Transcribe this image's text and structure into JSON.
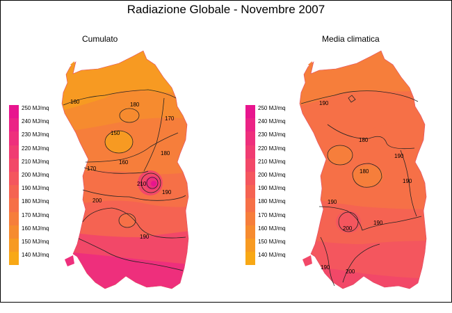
{
  "title": "Radiazione Globale - Novembre 2007",
  "panels": [
    {
      "title": "Cumulato"
    },
    {
      "title": "Media climatica"
    }
  ],
  "legend": {
    "unit": "MJ/mq",
    "items": [
      {
        "label": "250 MJ/mq",
        "color": "#e8158e"
      },
      {
        "label": "240 MJ/mq",
        "color": "#eb2385"
      },
      {
        "label": "230 MJ/mq",
        "color": "#ee2f7c"
      },
      {
        "label": "220 MJ/mq",
        "color": "#f03c72"
      },
      {
        "label": "210 MJ/mq",
        "color": "#f24868"
      },
      {
        "label": "200 MJ/mq",
        "color": "#f4565e"
      },
      {
        "label": "190 MJ/mq",
        "color": "#f56352"
      },
      {
        "label": "180 MJ/mq",
        "color": "#f67047"
      },
      {
        "label": "170 MJ/mq",
        "color": "#f67e3b"
      },
      {
        "label": "160 MJ/mq",
        "color": "#f68b2f"
      },
      {
        "label": "150 MJ/mq",
        "color": "#f79a22"
      },
      {
        "label": "140 MJ/mq",
        "color": "#f8a815"
      }
    ]
  },
  "isolines": {
    "left": [
      "160",
      "180",
      "150",
      "170",
      "160",
      "180",
      "170",
      "190",
      "210",
      "200",
      "190"
    ],
    "right": [
      "190",
      "180",
      "190",
      "190",
      "180",
      "190",
      "200",
      "190",
      "190",
      "200"
    ]
  }
}
